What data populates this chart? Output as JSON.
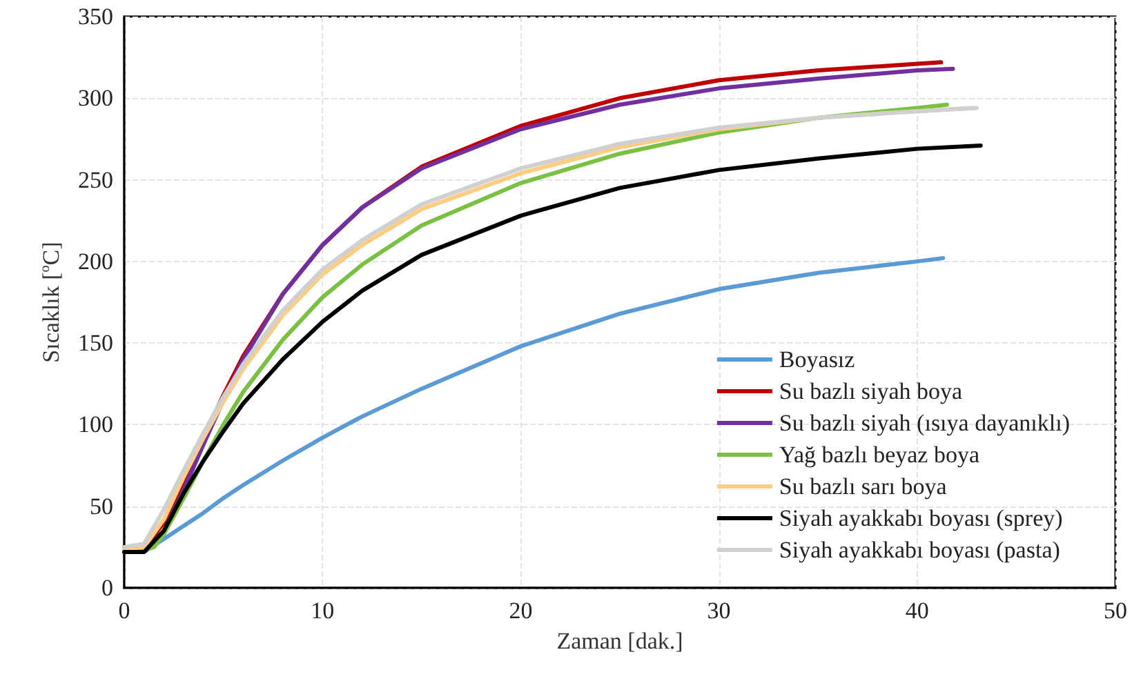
{
  "chart_data": {
    "type": "line",
    "xlabel": "Zaman [dak.]",
    "ylabel": "Sıcaklık [$^{o}$C]",
    "xlim": [
      0,
      50
    ],
    "xticks": [
      0,
      10,
      20,
      30,
      40,
      50
    ],
    "ylim": [
      0,
      350
    ],
    "yticks": [
      0,
      50,
      100,
      150,
      200,
      250,
      300,
      350
    ],
    "grid": true,
    "legend": "bottom right",
    "marker": "none",
    "line_style": "solid",
    "series": [
      {
        "name": "Boyasız",
        "color": "#5b9bd5",
        "x": [
          0,
          1,
          2,
          3,
          4,
          5,
          6,
          8,
          10,
          12,
          15,
          20,
          25,
          30,
          35,
          40,
          41.3
        ],
        "values": [
          22,
          22,
          30,
          38,
          46,
          55,
          63,
          78,
          92,
          105,
          122,
          148,
          168,
          183,
          193,
          200,
          202
        ]
      },
      {
        "name": "Su bazlı siyah boya",
        "color": "#c00000",
        "x": [
          0,
          1,
          2,
          3,
          4,
          5,
          6,
          8,
          10,
          12,
          15,
          20,
          25,
          30,
          35,
          40,
          41.2
        ],
        "values": [
          25,
          24,
          40,
          65,
          92,
          118,
          142,
          180,
          210,
          233,
          258,
          283,
          300,
          311,
          317,
          321,
          322
        ]
      },
      {
        "name": "Su bazlı siyah (ısıya dayanıklı)",
        "color": "#7030a0",
        "x": [
          0,
          1,
          2,
          3,
          4,
          5,
          6,
          8,
          10,
          12,
          15,
          20,
          25,
          30,
          35,
          40,
          41.8
        ],
        "values": [
          22,
          23,
          35,
          60,
          88,
          115,
          140,
          180,
          210,
          233,
          257,
          281,
          296,
          306,
          312,
          317,
          318
        ]
      },
      {
        "name": "Yağ bazlı beyaz boya",
        "color": "#7ac143",
        "x": [
          0,
          1,
          1.5,
          2,
          3,
          4,
          5,
          6,
          8,
          10,
          12,
          15,
          20,
          25,
          30,
          35,
          40,
          41.5
        ],
        "values": [
          22,
          23,
          25,
          33,
          55,
          78,
          100,
          120,
          152,
          178,
          198,
          222,
          248,
          266,
          279,
          288,
          294,
          296
        ]
      },
      {
        "name": "Su bazlı sarı boya",
        "color": "#ffcc80",
        "x": [
          0,
          1,
          2,
          3,
          4,
          5,
          6,
          8,
          10,
          12,
          15,
          20,
          25,
          30,
          35,
          40,
          42.8
        ],
        "values": [
          24,
          25,
          42,
          68,
          92,
          114,
          134,
          167,
          192,
          210,
          232,
          254,
          270,
          281,
          288,
          292,
          294
        ]
      },
      {
        "name": "Siyah ayakkabı boyası (sprey)",
        "color": "#000000",
        "x": [
          0,
          1,
          2,
          3,
          4,
          5,
          6,
          8,
          10,
          12,
          15,
          20,
          25,
          30,
          35,
          40,
          43.2
        ],
        "values": [
          22,
          22,
          35,
          58,
          78,
          96,
          113,
          140,
          163,
          182,
          204,
          228,
          245,
          256,
          263,
          269,
          271
        ]
      },
      {
        "name": "Siyah ayakkabı boyası (pasta)",
        "color": "#d0d0d0",
        "x": [
          0,
          1,
          2,
          3,
          4,
          5,
          6,
          8,
          10,
          12,
          15,
          20,
          25,
          30,
          35,
          40,
          43
        ],
        "values": [
          25,
          27,
          48,
          72,
          95,
          117,
          137,
          170,
          195,
          213,
          235,
          257,
          272,
          282,
          288,
          292,
          294
        ]
      }
    ]
  }
}
